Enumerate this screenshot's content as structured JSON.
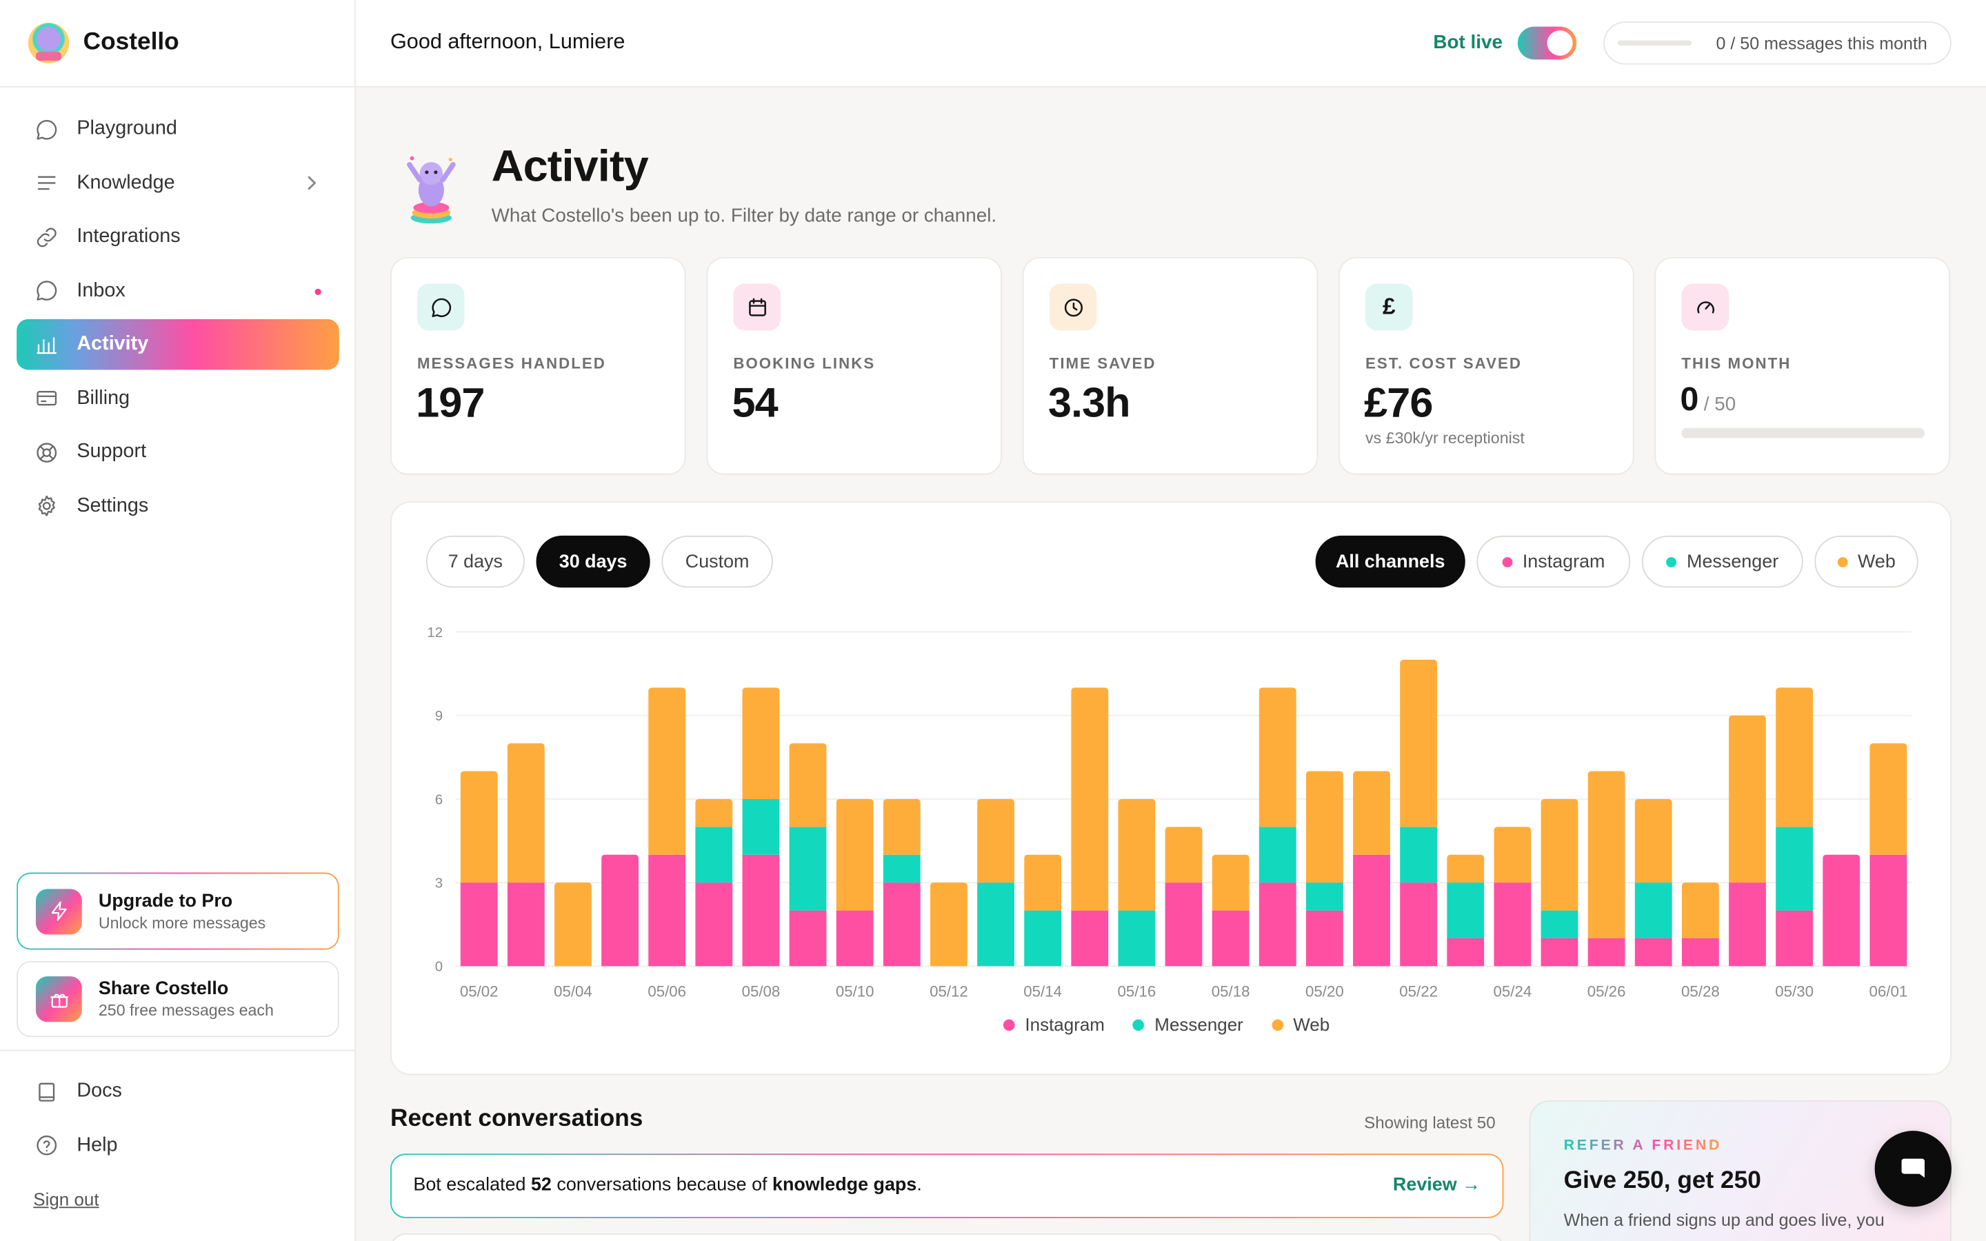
{
  "app": {
    "name": "Costello"
  },
  "sidebar": {
    "items": [
      {
        "label": "Playground",
        "icon": "chat-bubble-icon"
      },
      {
        "label": "Knowledge",
        "icon": "lines-icon"
      },
      {
        "label": "Integrations",
        "icon": "link-icon"
      },
      {
        "label": "Inbox",
        "icon": "inbox-bubble-icon"
      },
      {
        "label": "Activity",
        "icon": "bar-chart-icon"
      },
      {
        "label": "Billing",
        "icon": "credit-card-icon"
      },
      {
        "label": "Support",
        "icon": "lifebuoy-icon"
      },
      {
        "label": "Settings",
        "icon": "gear-icon"
      }
    ],
    "upgrade": {
      "title": "Upgrade to Pro",
      "subtitle": "Unlock more messages"
    },
    "share": {
      "title": "Share Costello",
      "subtitle": "250 free messages each"
    },
    "bottom": [
      {
        "label": "Docs",
        "icon": "book-icon"
      },
      {
        "label": "Help",
        "icon": "help-circle-icon"
      }
    ],
    "signout": "Sign out"
  },
  "header": {
    "greeting": "Good afternoon, Lumiere",
    "bot_status": "Bot live",
    "bot_live": true,
    "quota_text": "0 / 50 messages this month",
    "quota_fraction": 0
  },
  "page": {
    "title": "Activity",
    "subtitle": "What Costello's been up to. Filter by date range or channel."
  },
  "stats": [
    {
      "label": "MESSAGES HANDLED",
      "value": "197",
      "icon": "chat-bubble-icon",
      "tint": "#dff6f2"
    },
    {
      "label": "BOOKING LINKS",
      "value": "54",
      "icon": "calendar-icon",
      "tint": "#fde3ee"
    },
    {
      "label": "TIME SAVED",
      "value": "3.3h",
      "icon": "clock-icon",
      "tint": "#fdeedc"
    },
    {
      "label": "EST. COST SAVED",
      "value": "£76",
      "note": "vs £30k/yr receptionist",
      "icon": "pound-icon",
      "tint": "#dff6f2"
    },
    {
      "label": "THIS MONTH",
      "value": "0",
      "of": "/ 50",
      "fraction": 0,
      "icon": "gauge-icon",
      "tint": "#fde3ee"
    }
  ],
  "filters": {
    "ranges": [
      "7 days",
      "30 days",
      "Custom"
    ],
    "active_range": "30 days",
    "channels": [
      "All channels",
      "Instagram",
      "Messenger",
      "Web"
    ],
    "active_channel": "All channels"
  },
  "colors": {
    "instagram": "#ff4fa3",
    "messenger": "#12d9bd",
    "web": "#ffad3a",
    "accent_green": "#14866a"
  },
  "chart_data": {
    "type": "bar",
    "stacked": true,
    "categories": [
      "05/02",
      "05/03",
      "05/04",
      "05/05",
      "05/06",
      "05/07",
      "05/08",
      "05/09",
      "05/10",
      "05/11",
      "05/12",
      "05/13",
      "05/14",
      "05/15",
      "05/16",
      "05/17",
      "05/18",
      "05/19",
      "05/20",
      "05/21",
      "05/22",
      "05/23",
      "05/24",
      "05/25",
      "05/26",
      "05/27",
      "05/28",
      "05/29",
      "05/30",
      "05/31",
      "06/01"
    ],
    "tick_labels": [
      "05/02",
      "05/04",
      "05/06",
      "05/08",
      "05/10",
      "05/12",
      "05/14",
      "05/16",
      "05/18",
      "05/20",
      "05/22",
      "05/24",
      "05/26",
      "05/28",
      "05/30",
      "06/01"
    ],
    "series": [
      {
        "name": "Instagram",
        "values": [
          3,
          3,
          0,
          4,
          4,
          3,
          4,
          2,
          2,
          3,
          0,
          0,
          0,
          2,
          0,
          3,
          2,
          3,
          2,
          4,
          3,
          1,
          3,
          1,
          1,
          1,
          1,
          3,
          2,
          4,
          4
        ]
      },
      {
        "name": "Messenger",
        "values": [
          0,
          0,
          0,
          0,
          0,
          2,
          2,
          3,
          0,
          1,
          0,
          3,
          2,
          0,
          2,
          0,
          0,
          2,
          1,
          0,
          2,
          2,
          0,
          1,
          0,
          2,
          0,
          0,
          3,
          0,
          0
        ]
      },
      {
        "name": "Web",
        "values": [
          4,
          5,
          3,
          0,
          6,
          1,
          4,
          3,
          4,
          2,
          3,
          3,
          2,
          8,
          4,
          2,
          2,
          5,
          4,
          3,
          6,
          1,
          2,
          4,
          6,
          3,
          2,
          6,
          5,
          0,
          4
        ]
      }
    ],
    "yticks": [
      0,
      3,
      6,
      9,
      12
    ],
    "ylim": [
      0,
      12
    ],
    "grid": true,
    "legend": "bottom-center"
  },
  "recent": {
    "title": "Recent conversations",
    "count_text": "Showing latest 50",
    "banner_pre": "Bot escalated ",
    "banner_count": "52",
    "banner_mid": " conversations because of ",
    "banner_strong": "knowledge gaps",
    "banner_post": ".",
    "banner_link": "Review →"
  },
  "refer": {
    "kicker": "REFER A FRIEND",
    "title": "Give 250, get 250",
    "subtitle": "When a friend signs up and goes live, you"
  },
  "fab": {
    "icon": "chat-icon"
  }
}
